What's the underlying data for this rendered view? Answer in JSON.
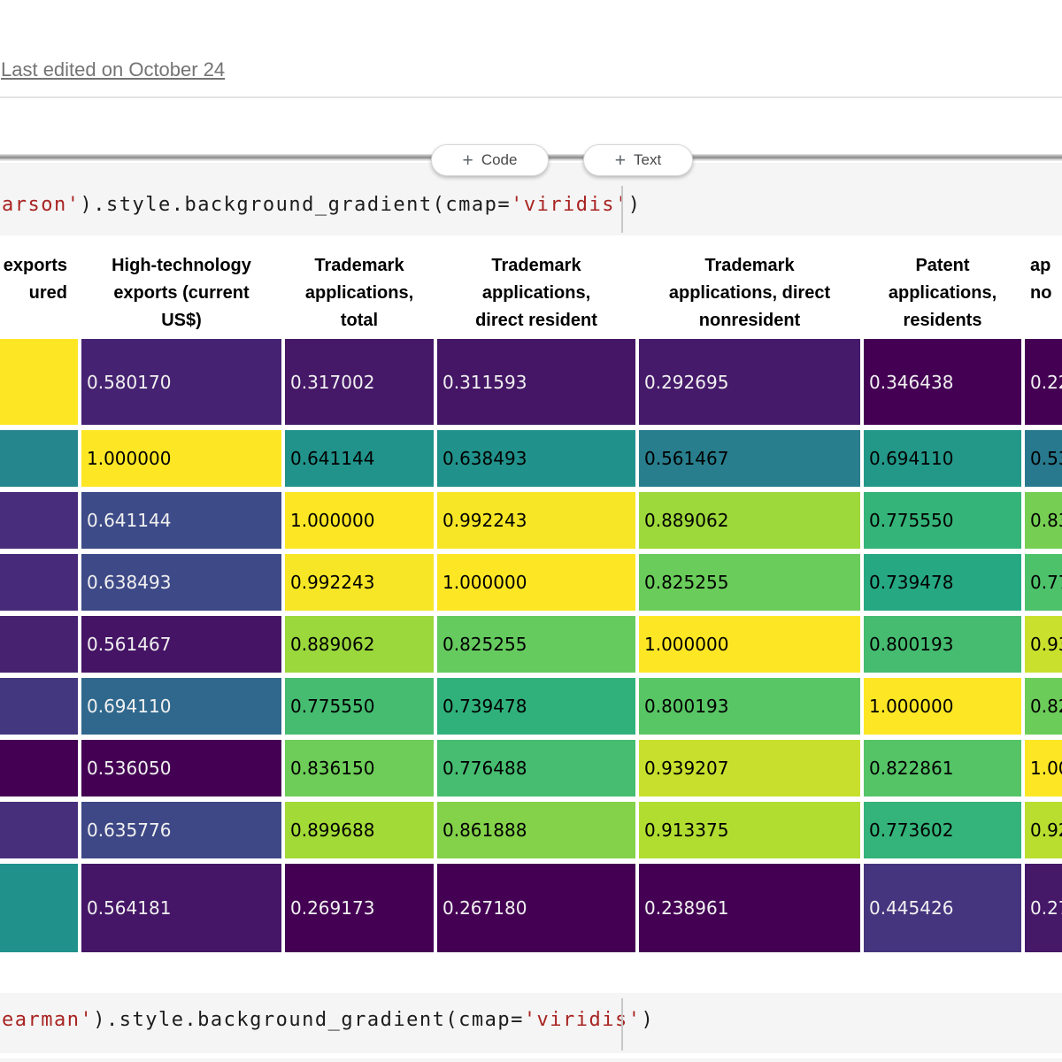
{
  "header": {
    "last_edited": "Last edited on October 24",
    "add_code": {
      "plus": "+",
      "label": "Code"
    },
    "add_text": {
      "plus": "+",
      "label": "Text"
    }
  },
  "colors": {
    "string_token": "#a82422",
    "code_token": "#1c1c1c",
    "code_cell_bg": "#f5f5f5",
    "light_cell_text": "#f1f1f1",
    "dark_cell_text": "#000000",
    "colormap": "viridis"
  },
  "code_cells": [
    {
      "id": "pearson-gradient",
      "segments": [
        {
          "t": "arson'",
          "k": "str"
        },
        {
          "t": ").style.background_gradient(cmap=",
          "k": "pln"
        },
        {
          "t": "'viridis'",
          "k": "str"
        },
        {
          "t": ")",
          "k": "pln"
        }
      ]
    },
    {
      "id": "spearman-gradient",
      "segments": [
        {
          "t": "earman'",
          "k": "str"
        },
        {
          "t": ").style.background_gradient(cmap=",
          "k": "pln"
        },
        {
          "t": "'viridis'",
          "k": "str"
        },
        {
          "t": ")",
          "k": "pln"
        }
      ]
    }
  ],
  "table": {
    "columns": [
      {
        "id": "left-partial",
        "align": "right",
        "header_lines": [
          "exports",
          "ured"
        ]
      },
      {
        "id": "high-technology-exports",
        "align": "center",
        "header_lines": [
          "High-technology",
          "exports (current",
          "US$)"
        ]
      },
      {
        "id": "trademark-total",
        "align": "center",
        "header_lines": [
          "Trademark",
          "applications,",
          "total"
        ]
      },
      {
        "id": "trademark-direct-resident",
        "align": "center",
        "header_lines": [
          "Trademark",
          "applications,",
          "direct resident"
        ]
      },
      {
        "id": "trademark-direct-nonresident",
        "align": "center",
        "header_lines": [
          "Trademark",
          "applications, direct",
          "nonresident"
        ]
      },
      {
        "id": "patent-residents",
        "align": "center",
        "header_lines": [
          "Patent",
          "applications,",
          "residents"
        ]
      },
      {
        "id": "right-partial",
        "align": "left",
        "header_lines": [
          "",
          "ap",
          "no"
        ]
      }
    ],
    "rows": [
      [
        {
          "v": "",
          "bg": "#fde725",
          "fg": "#000000"
        },
        {
          "v": "0.580170",
          "bg": "#462372",
          "fg": "#f1f1f1"
        },
        {
          "v": "0.317002",
          "bg": "#461868",
          "fg": "#f1f1f1"
        },
        {
          "v": "0.311593",
          "bg": "#451666",
          "fg": "#f1f1f1"
        },
        {
          "v": "0.292695",
          "bg": "#461a6a",
          "fg": "#f1f1f1"
        },
        {
          "v": "0.346438",
          "bg": "#440154",
          "fg": "#f1f1f1"
        },
        {
          "v": "0.22",
          "bg": "#440154",
          "fg": "#f1f1f1"
        }
      ],
      [
        {
          "v": "",
          "bg": "#25878d",
          "fg": "#000000"
        },
        {
          "v": "1.000000",
          "bg": "#fde725",
          "fg": "#000000"
        },
        {
          "v": "0.641144",
          "bg": "#21938b",
          "fg": "#000000"
        },
        {
          "v": "0.638493",
          "bg": "#21928b",
          "fg": "#000000"
        },
        {
          "v": "0.561467",
          "bg": "#287e8d",
          "fg": "#000000"
        },
        {
          "v": "0.694110",
          "bg": "#239889",
          "fg": "#000000"
        },
        {
          "v": "0.53",
          "bg": "#29798e",
          "fg": "#000000"
        }
      ],
      [
        {
          "v": "",
          "bg": "#472d7b",
          "fg": "#f1f1f1"
        },
        {
          "v": "0.641144",
          "bg": "#3d4b88",
          "fg": "#f1f1f1"
        },
        {
          "v": "1.000000",
          "bg": "#fde725",
          "fg": "#000000"
        },
        {
          "v": "0.992243",
          "bg": "#f6e626",
          "fg": "#000000"
        },
        {
          "v": "0.889062",
          "bg": "#9dd93a",
          "fg": "#000000"
        },
        {
          "v": "0.775550",
          "bg": "#35b479",
          "fg": "#000000"
        },
        {
          "v": "0.83",
          "bg": "#76cf53",
          "fg": "#000000"
        }
      ],
      [
        {
          "v": "",
          "bg": "#472a7a",
          "fg": "#f1f1f1"
        },
        {
          "v": "0.638493",
          "bg": "#3e4987",
          "fg": "#f1f1f1"
        },
        {
          "v": "0.992243",
          "bg": "#f6e626",
          "fg": "#000000"
        },
        {
          "v": "1.000000",
          "bg": "#fde725",
          "fg": "#000000"
        },
        {
          "v": "0.825255",
          "bg": "#6acc5a",
          "fg": "#000000"
        },
        {
          "v": "0.739478",
          "bg": "#26a883",
          "fg": "#000000"
        },
        {
          "v": "0.77",
          "bg": "#4ec16b",
          "fg": "#000000"
        }
      ],
      [
        {
          "v": "",
          "bg": "#462271",
          "fg": "#f1f1f1"
        },
        {
          "v": "0.561467",
          "bg": "#451465",
          "fg": "#f1f1f1"
        },
        {
          "v": "0.889062",
          "bg": "#9ad83c",
          "fg": "#000000"
        },
        {
          "v": "0.825255",
          "bg": "#65cb5e",
          "fg": "#000000"
        },
        {
          "v": "1.000000",
          "bg": "#fde725",
          "fg": "#000000"
        },
        {
          "v": "0.800193",
          "bg": "#45bc70",
          "fg": "#000000"
        },
        {
          "v": "0.93",
          "bg": "#c9e02d",
          "fg": "#000000"
        }
      ],
      [
        {
          "v": "",
          "bg": "#433880",
          "fg": "#f1f1f1"
        },
        {
          "v": "0.694110",
          "bg": "#30688d",
          "fg": "#f1f1f1"
        },
        {
          "v": "0.775550",
          "bg": "#45bc70",
          "fg": "#000000"
        },
        {
          "v": "0.739478",
          "bg": "#30b17c",
          "fg": "#000000"
        },
        {
          "v": "0.800193",
          "bg": "#59c665",
          "fg": "#000000"
        },
        {
          "v": "1.000000",
          "bg": "#fde725",
          "fg": "#000000"
        },
        {
          "v": "0.82",
          "bg": "#6ccc59",
          "fg": "#000000"
        }
      ],
      [
        {
          "v": "",
          "bg": "#440154",
          "fg": "#f1f1f1"
        },
        {
          "v": "0.536050",
          "bg": "#440154",
          "fg": "#f1f1f1"
        },
        {
          "v": "0.836150",
          "bg": "#6ecd58",
          "fg": "#000000"
        },
        {
          "v": "0.776488",
          "bg": "#46bd70",
          "fg": "#000000"
        },
        {
          "v": "0.939207",
          "bg": "#c8e02d",
          "fg": "#000000"
        },
        {
          "v": "0.822861",
          "bg": "#55c467",
          "fg": "#000000"
        },
        {
          "v": "1.00",
          "bg": "#fde725",
          "fg": "#000000"
        }
      ],
      [
        {
          "v": "",
          "bg": "#472f7c",
          "fg": "#f1f1f1"
        },
        {
          "v": "0.635776",
          "bg": "#3e4886",
          "fg": "#f1f1f1"
        },
        {
          "v": "0.899688",
          "bg": "#a2da37",
          "fg": "#000000"
        },
        {
          "v": "0.861888",
          "bg": "#83d24a",
          "fg": "#000000"
        },
        {
          "v": "0.913375",
          "bg": "#b1dd31",
          "fg": "#000000"
        },
        {
          "v": "0.773602",
          "bg": "#34b37a",
          "fg": "#000000"
        },
        {
          "v": "0.92",
          "bg": "#b9de30",
          "fg": "#000000"
        }
      ],
      [
        {
          "v": "",
          "bg": "#21918c",
          "fg": "#000000"
        },
        {
          "v": "0.564181",
          "bg": "#451667",
          "fg": "#f1f1f1"
        },
        {
          "v": "0.269173",
          "bg": "#440154",
          "fg": "#f1f1f1"
        },
        {
          "v": "0.267180",
          "bg": "#440154",
          "fg": "#f1f1f1"
        },
        {
          "v": "0.238961",
          "bg": "#440154",
          "fg": "#f1f1f1"
        },
        {
          "v": "0.445426",
          "bg": "#45357e",
          "fg": "#f1f1f1"
        },
        {
          "v": "0.27",
          "bg": "#451868",
          "fg": "#f1f1f1"
        }
      ]
    ]
  }
}
